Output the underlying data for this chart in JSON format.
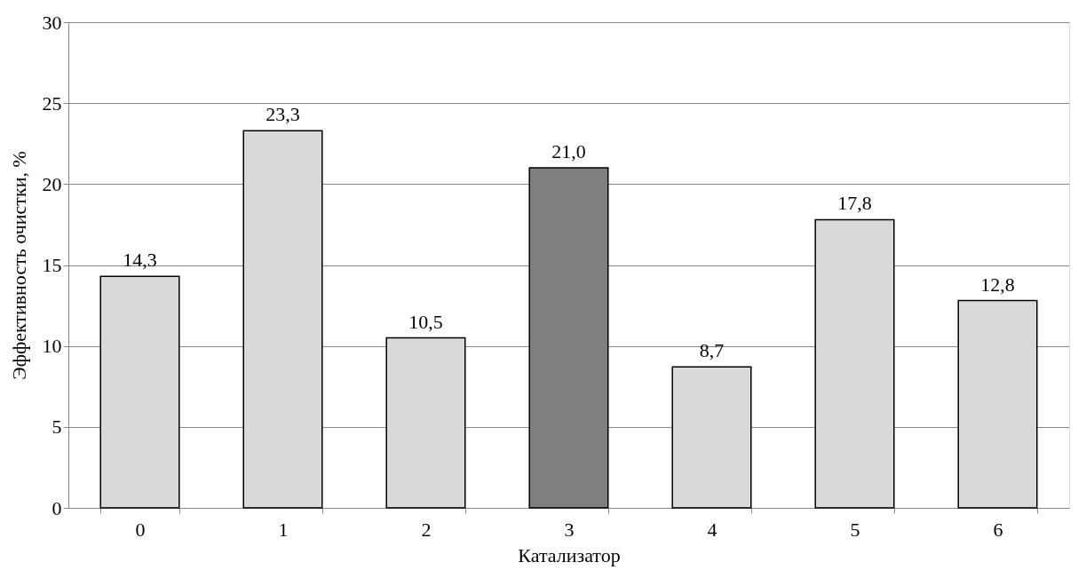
{
  "chart_data": {
    "type": "bar",
    "xlabel": "Катализатор",
    "ylabel": "Эффективность очистки, %",
    "categories": [
      "0",
      "1",
      "2",
      "3",
      "4",
      "5",
      "6"
    ],
    "values": [
      14.3,
      23.3,
      10.5,
      21.0,
      8.7,
      17.8,
      12.8
    ],
    "colors": [
      "#d9d9d9",
      "#d9d9d9",
      "#d9d9d9",
      "#7f7f7f",
      "#d9d9d9",
      "#d9d9d9",
      "#d9d9d9"
    ],
    "value_labels": [
      "14,3",
      "23,3",
      "10,5",
      "21,0",
      "8,7",
      "17,8",
      "12,8"
    ],
    "ylim": [
      0,
      30
    ],
    "yticks": [
      0,
      5,
      10,
      15,
      20,
      25,
      30
    ],
    "grid": "y"
  }
}
